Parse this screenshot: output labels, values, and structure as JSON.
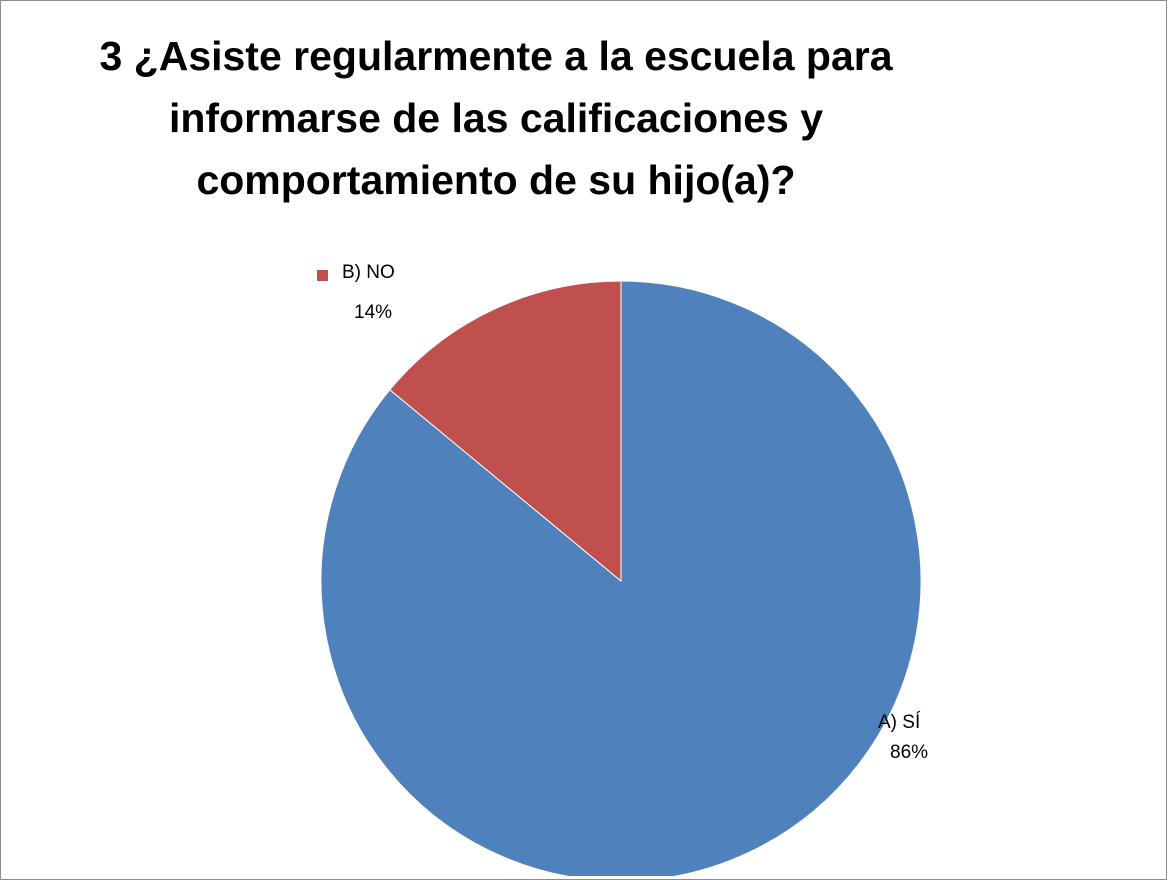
{
  "chart_data": {
    "type": "pie",
    "title": "3 ¿Asiste regularmente a  la escuela para informarse de las calificaciones y comportamiento de su hijo(a)?",
    "slices": [
      {
        "label": "A) SÍ",
        "value": 86,
        "percent_label": "86%",
        "color": "#4f81bd"
      },
      {
        "label": "B) NO",
        "value": 14,
        "percent_label": "14%",
        "color": "#c0504d"
      }
    ],
    "legend": "none"
  }
}
